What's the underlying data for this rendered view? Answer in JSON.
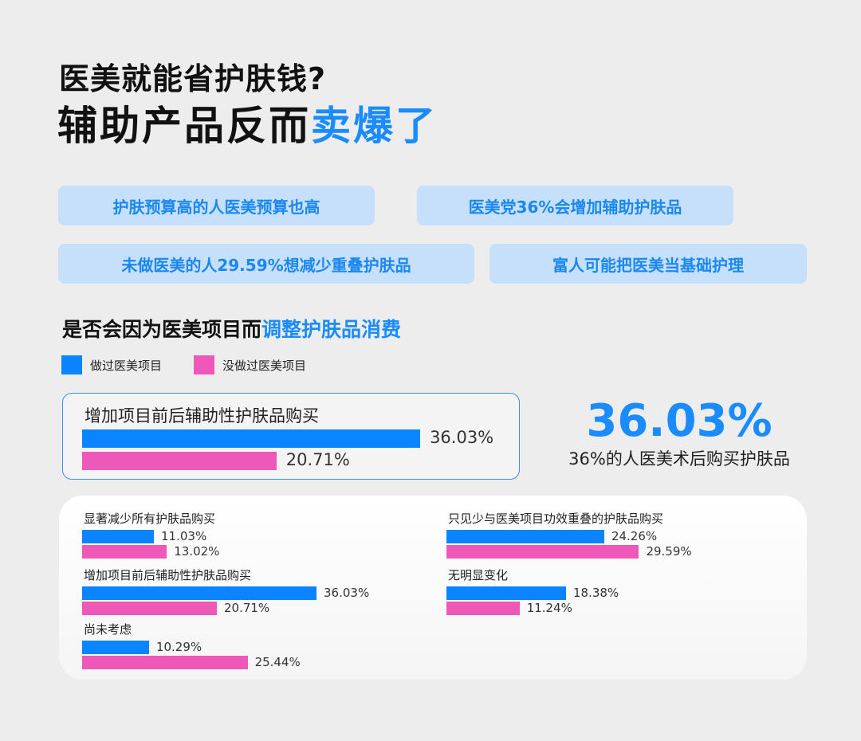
{
  "title": {
    "line1": "医美就能省护肤钱?",
    "line2_plain": "辅助产品反而",
    "line2_accent": "卖爆了"
  },
  "pills": [
    "护肤预算高的人医美预算也高",
    "医美党36%会增加辅助护肤品",
    "未做医美的人29.59%想减少重叠护肤品",
    "富人可能把医美当基础护理"
  ],
  "subtitle": {
    "plain": "是否会因为医美项目而",
    "accent": "调整护肤品消费"
  },
  "highlight": {
    "big_value": "36.03%",
    "caption": "36%的人医美术后购买护肤品"
  },
  "colors": {
    "series1": "#0a84ff",
    "series2": "#ee58b9",
    "accent": "#1a8cff",
    "pill_bg": "#c6e0fb"
  },
  "chart_data": {
    "type": "bar",
    "orientation": "horizontal",
    "unit": "%",
    "series": [
      {
        "name": "做过医美项目",
        "color": "#0a84ff"
      },
      {
        "name": "没做过医美项目",
        "color": "#ee58b9"
      }
    ],
    "featured": {
      "category": "增加项目前后辅助性护肤品购买",
      "values": [
        36.03,
        20.71
      ],
      "labels": [
        "36.03%",
        "20.71%"
      ]
    },
    "categories": [
      {
        "name": "显著减少所有护肤品购买",
        "values": [
          11.03,
          13.02
        ],
        "labels": [
          "11.03%",
          "13.02%"
        ]
      },
      {
        "name": "增加项目前后辅助性护肤品购买",
        "values": [
          36.03,
          20.71
        ],
        "labels": [
          "36.03%",
          "20.71%"
        ]
      },
      {
        "name": "尚未考虑",
        "values": [
          10.29,
          25.44
        ],
        "labels": [
          "10.29%",
          "25.44%"
        ]
      },
      {
        "name": "只见少与医美项目功效重叠的护肤品购买",
        "values": [
          24.26,
          29.59
        ],
        "labels": [
          "24.26%",
          "29.59%"
        ]
      },
      {
        "name": "无明显变化",
        "values": [
          18.38,
          11.24
        ],
        "labels": [
          "18.38%",
          "11.24%"
        ]
      }
    ]
  }
}
